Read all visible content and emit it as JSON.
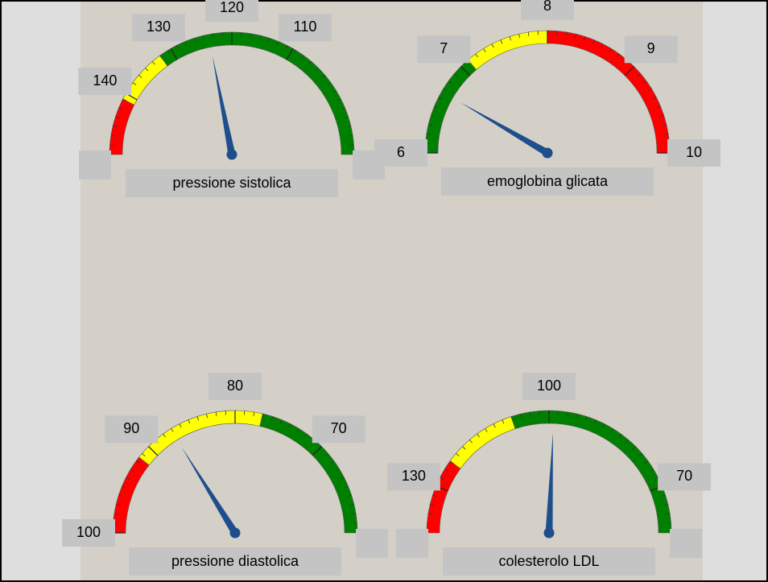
{
  "chart_data": [
    {
      "type": "gauge",
      "title": "pressione sistolica",
      "range": [
        150,
        90
      ],
      "ticks": [
        140,
        130,
        120,
        110
      ],
      "value": 123.7,
      "bands": [
        {
          "color": "#ff0000",
          "from": 150,
          "to": 141
        },
        {
          "color": "#ffff00",
          "from": 141,
          "to": 132
        },
        {
          "color": "#008000",
          "from": 132,
          "to": 90
        }
      ],
      "needle_color": "#1f4e8c"
    },
    {
      "type": "gauge",
      "title": "emoglobina glicata",
      "range": [
        6,
        10
      ],
      "ticks": [
        6,
        7,
        8,
        9,
        10
      ],
      "value": 6.67,
      "bands": [
        {
          "color": "#008000",
          "from": 6,
          "to": 7.1
        },
        {
          "color": "#ffff00",
          "from": 7.1,
          "to": 8
        },
        {
          "color": "#ff0000",
          "from": 8,
          "to": 10
        }
      ],
      "needle_color": "#1f4e8c"
    },
    {
      "type": "gauge",
      "title": "pressione diastolica",
      "range": [
        100,
        60
      ],
      "ticks": [
        100,
        90,
        80,
        70
      ],
      "value": 87.1,
      "bands": [
        {
          "color": "#ff0000",
          "from": 100,
          "to": 91.5
        },
        {
          "color": "#ffff00",
          "from": 91.5,
          "to": 77.1
        },
        {
          "color": "#008000",
          "from": 77.1,
          "to": 60
        }
      ],
      "needle_color": "#1f4e8c"
    },
    {
      "type": "gauge",
      "title": "colesterolo LDL",
      "range": [
        140,
        60
      ],
      "ticks": [
        130,
        100,
        70
      ],
      "value": 99,
      "bands": [
        {
          "color": "#ff0000",
          "from": 140,
          "to": 124
        },
        {
          "color": "#ffff00",
          "from": 124,
          "to": 108
        },
        {
          "color": "#008000",
          "from": 108,
          "to": 60
        }
      ],
      "needle_color": "#1f4e8c"
    }
  ]
}
